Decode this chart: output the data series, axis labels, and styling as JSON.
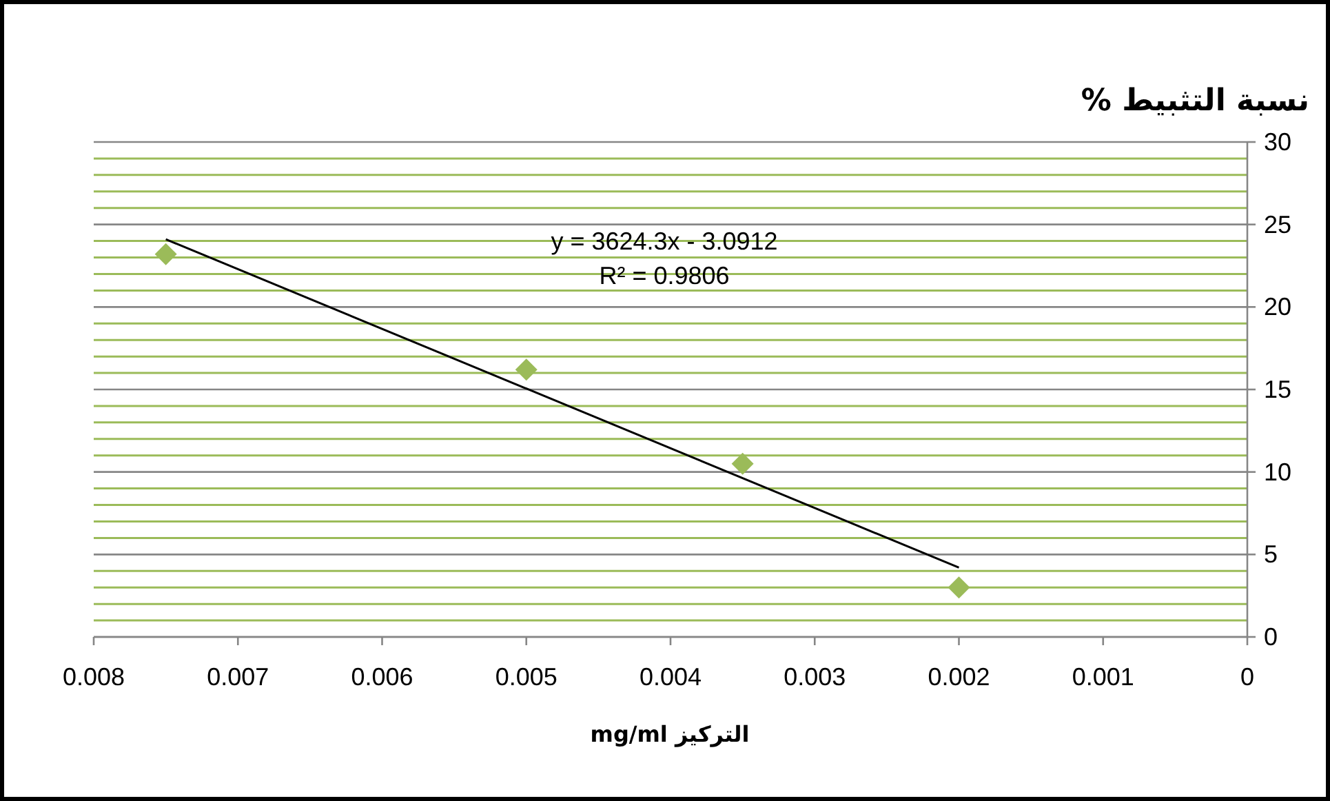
{
  "chart_data": {
    "type": "scatter",
    "ylabel": "نسبة التثبيط %",
    "xlabel": "التركيز mg/ml",
    "x": [
      0.0075,
      0.005,
      0.0035,
      0.002
    ],
    "series": [
      {
        "color": "#9bbb59",
        "marker": "diamond",
        "values": [
          23.2,
          16.2,
          10.5,
          3.0
        ]
      },
      {
        "type": "line",
        "color": "#000000",
        "marker": "none",
        "x": [
          0.0075,
          0.002
        ],
        "values": [
          24.1,
          4.2
        ]
      }
    ],
    "annotations": [
      "y = 3624.3x - 3.0912",
      "R² = 0.9806"
    ],
    "xlim": [
      0.008,
      0
    ],
    "xticks": [
      0.008,
      0.007,
      0.006,
      0.005,
      0.004,
      0.003,
      0.002,
      0.001,
      0
    ],
    "ylim": [
      0,
      30
    ],
    "yticks": [
      0,
      {
        "value": 1,
        "label": null
      },
      {
        "value": 2,
        "label": null
      },
      {
        "value": 3,
        "label": null
      },
      {
        "value": 4,
        "label": null
      },
      5,
      {
        "value": 6,
        "label": null
      },
      {
        "value": 7,
        "label": null
      },
      {
        "value": 8,
        "label": null
      },
      {
        "value": 9,
        "label": null
      },
      10,
      {
        "value": 11,
        "label": null
      },
      {
        "value": 12,
        "label": null
      },
      {
        "value": 13,
        "label": null
      },
      {
        "value": 14,
        "label": null
      },
      15,
      {
        "value": 16,
        "label": null
      },
      {
        "value": 17,
        "label": null
      },
      {
        "value": 18,
        "label": null
      },
      {
        "value": 19,
        "label": null
      },
      20,
      {
        "value": 21,
        "label": null
      },
      {
        "value": 22,
        "label": null
      },
      {
        "value": 23,
        "label": null
      },
      {
        "value": 24,
        "label": null
      },
      25,
      {
        "value": 26,
        "label": null
      },
      {
        "value": 27,
        "label": null
      },
      {
        "value": 28,
        "label": null
      },
      {
        "value": 29,
        "label": null
      },
      30
    ],
    "grid": "y"
  }
}
